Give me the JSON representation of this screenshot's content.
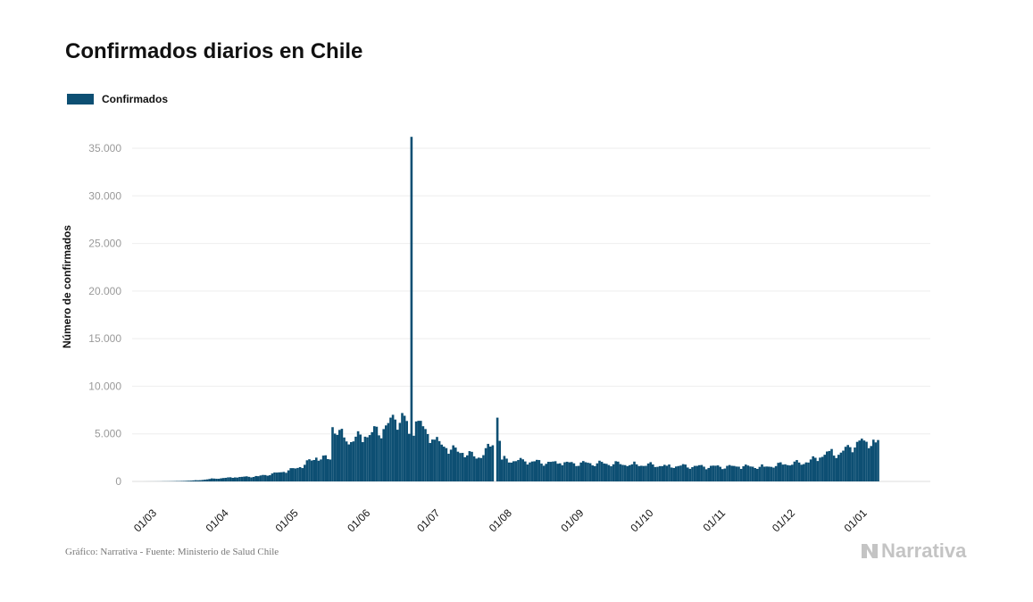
{
  "title": "Confirmados diarios en Chile",
  "legend": {
    "label": "Confirmados"
  },
  "credit": "Gráfico: Narrativa - Fuente: Ministerio de Salud Chile",
  "brand": "Narrativa",
  "colors": {
    "bar": "#0d4f73",
    "grid": "#eeeeee",
    "brand": "#c4c4c4"
  },
  "chart_data": {
    "type": "bar",
    "title": "Confirmados diarios en Chile",
    "xlabel": "",
    "ylabel": "Número de confirmados",
    "ylim": [
      0,
      37000
    ],
    "yticks": [
      0,
      5000,
      10000,
      15000,
      20000,
      25000,
      30000,
      35000
    ],
    "ytick_labels": [
      "0",
      "5.000",
      "10.000",
      "15.000",
      "20.000",
      "25.000",
      "30.000",
      "35.000"
    ],
    "xtick_labels": [
      "01/03",
      "01/04",
      "01/05",
      "01/06",
      "01/07",
      "01/08",
      "01/09",
      "01/10",
      "01/11",
      "01/12",
      "01/01"
    ],
    "grid": true,
    "legend_position": "top-left",
    "series": [
      {
        "name": "Confirmados",
        "anchor_values": [
          [
            0,
            0
          ],
          [
            8,
            10
          ],
          [
            16,
            40
          ],
          [
            24,
            120
          ],
          [
            31,
            300
          ],
          [
            40,
            420
          ],
          [
            50,
            550
          ],
          [
            61,
            1000
          ],
          [
            68,
            1500
          ],
          [
            75,
            2500
          ],
          [
            81,
            2300
          ],
          [
            82,
            5700
          ],
          [
            88,
            4200
          ],
          [
            96,
            4700
          ],
          [
            104,
            5500
          ],
          [
            109,
            6500
          ],
          [
            113,
            6900
          ],
          [
            115,
            5000
          ],
          [
            116,
            36200
          ],
          [
            117,
            4800
          ],
          [
            118,
            6300
          ],
          [
            125,
            4400
          ],
          [
            131,
            3500
          ],
          [
            138,
            3000
          ],
          [
            145,
            2500
          ],
          [
            151,
            3800
          ],
          [
            152,
            0
          ],
          [
            153,
            6700
          ],
          [
            155,
            2300
          ],
          [
            165,
            2100
          ],
          [
            180,
            1900
          ],
          [
            196,
            1900
          ],
          [
            211,
            1800
          ],
          [
            226,
            1650
          ],
          [
            242,
            1550
          ],
          [
            257,
            1550
          ],
          [
            268,
            1550
          ],
          [
            277,
            1800
          ],
          [
            286,
            2000
          ],
          [
            292,
            2500
          ],
          [
            296,
            3200
          ],
          [
            300,
            2800
          ],
          [
            305,
            3600
          ],
          [
            311,
            4300
          ],
          [
            316,
            4100
          ]
        ]
      }
    ]
  }
}
